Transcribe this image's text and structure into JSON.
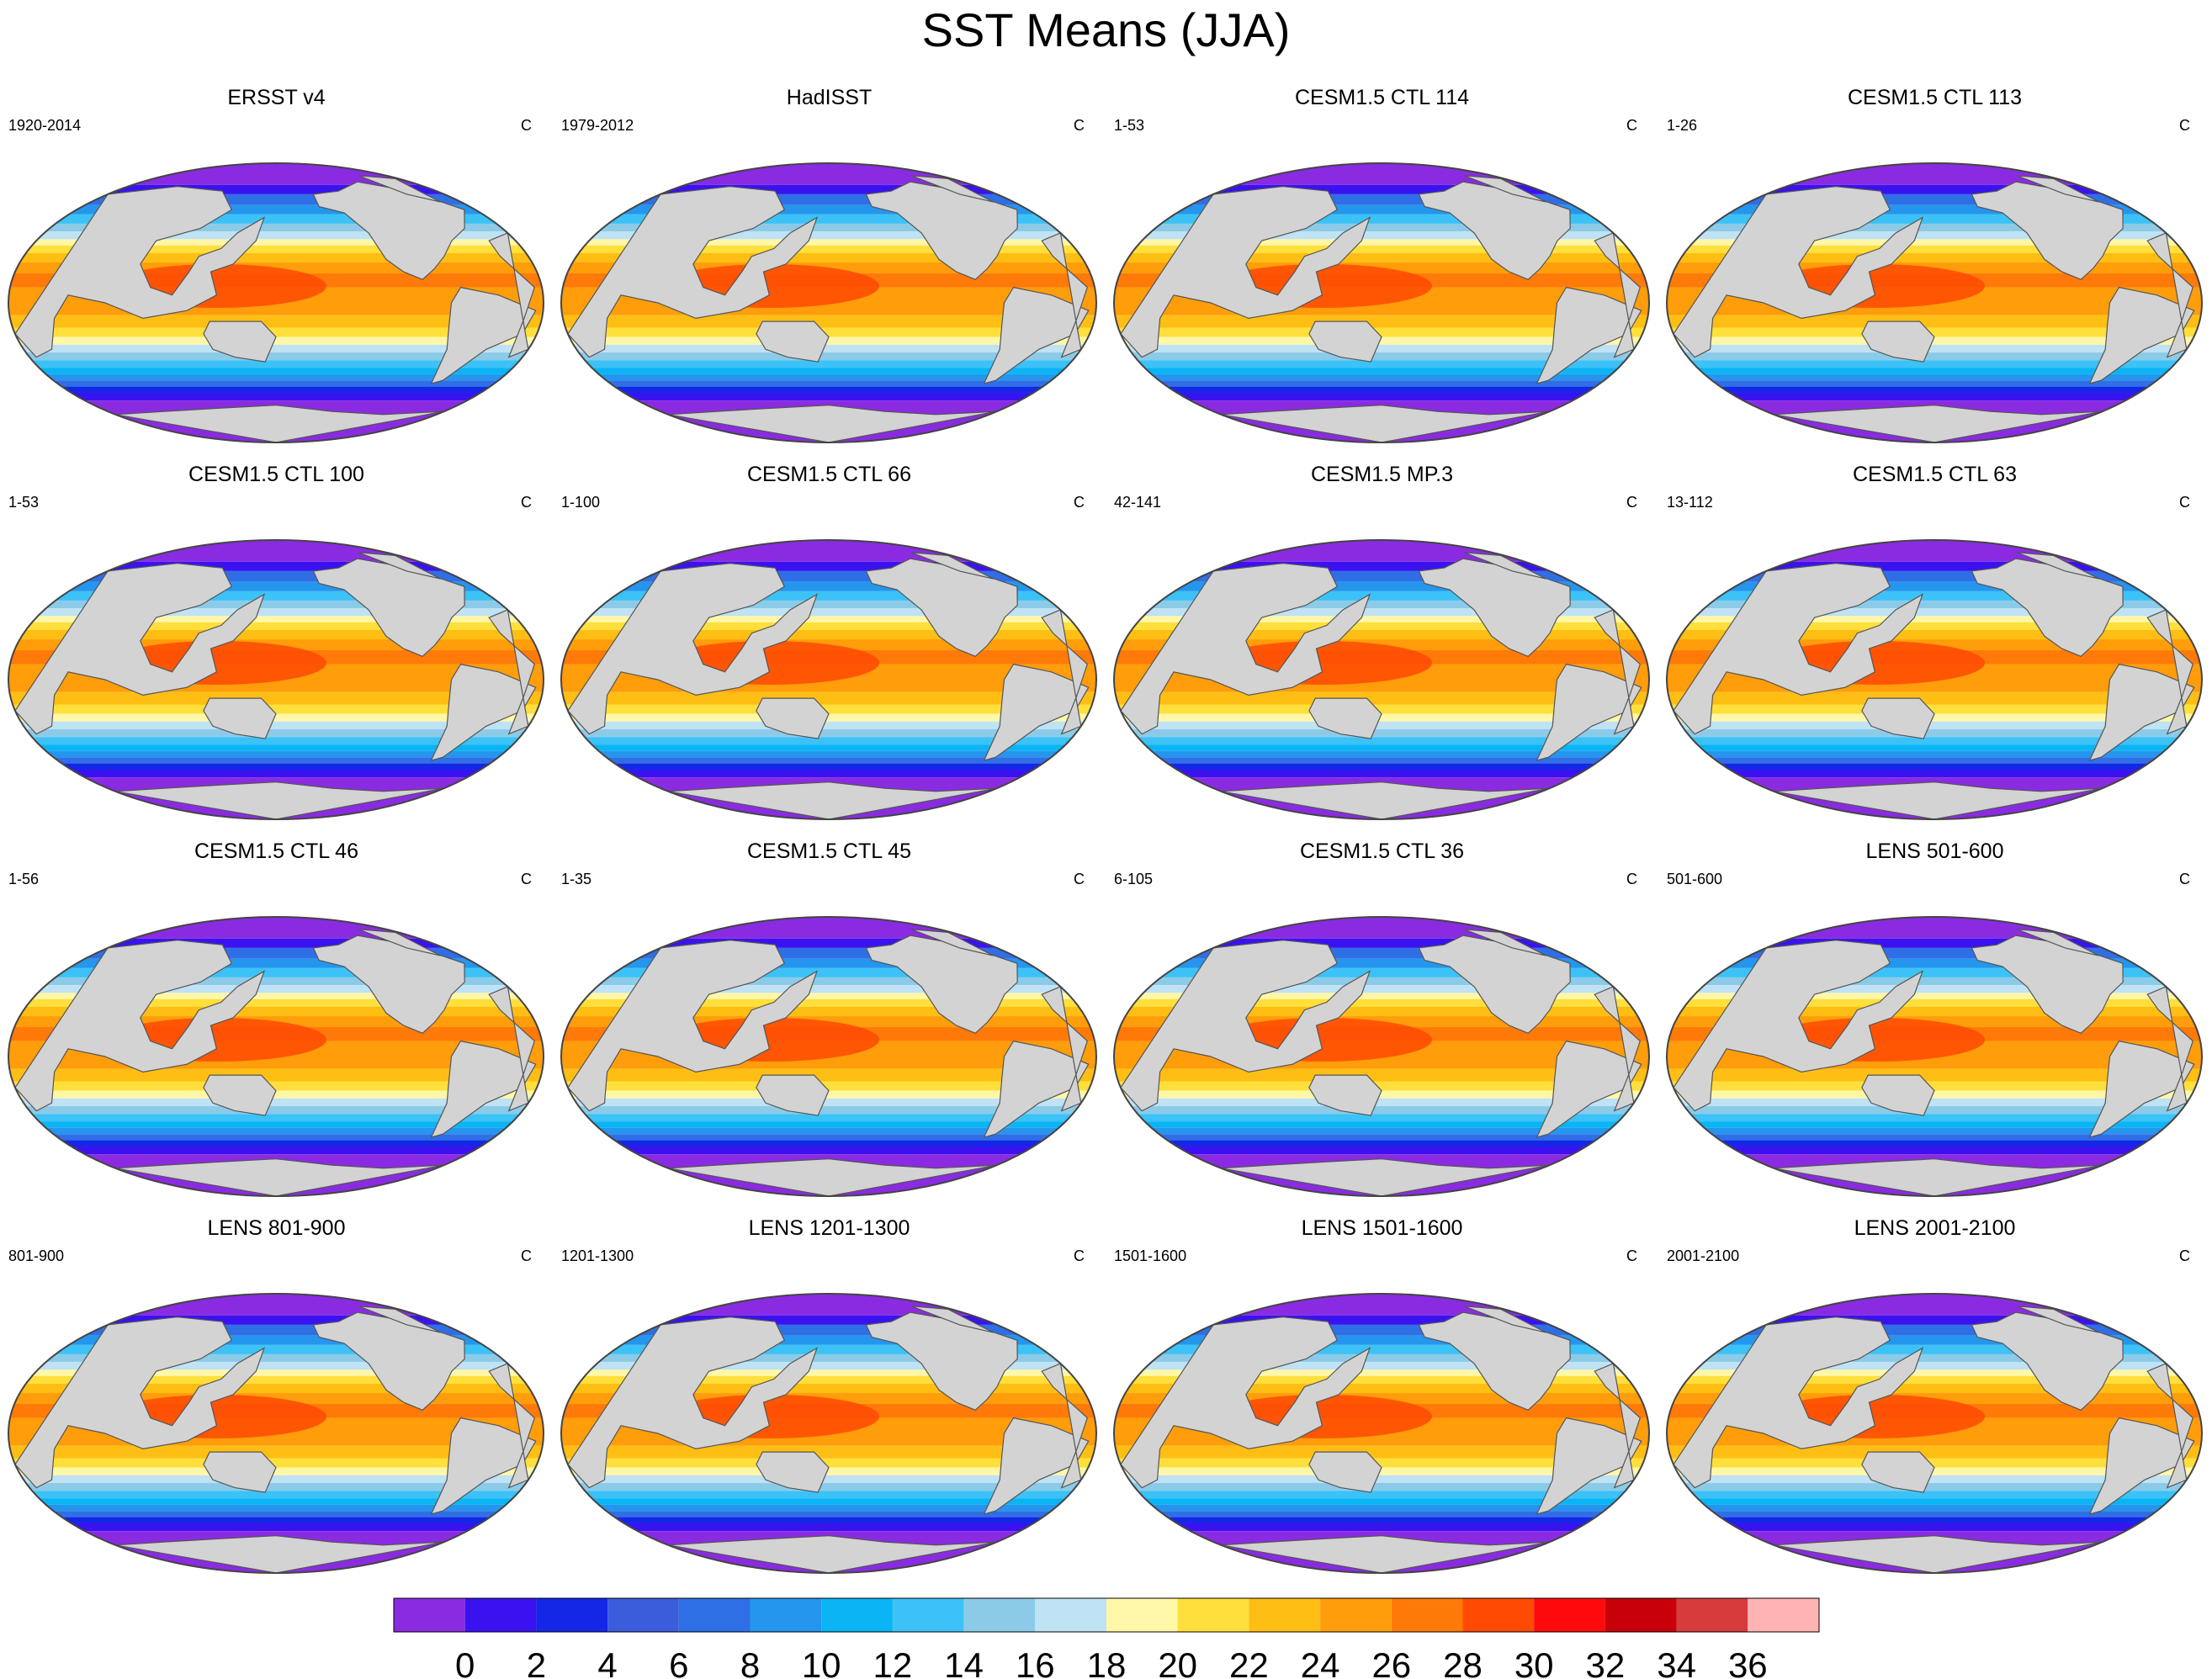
{
  "title": "SST Means (JJA)",
  "panels": [
    {
      "title": "ERSST v4",
      "left": "1920-2014",
      "right": "C"
    },
    {
      "title": "HadISST",
      "left": "1979-2012",
      "right": "C"
    },
    {
      "title": "CESM1.5 CTL 114",
      "left": "1-53",
      "right": "C"
    },
    {
      "title": "CESM1.5 CTL 113",
      "left": "1-26",
      "right": "C"
    },
    {
      "title": "CESM1.5 CTL 100",
      "left": "1-53",
      "right": "C"
    },
    {
      "title": "CESM1.5 CTL 66",
      "left": "1-100",
      "right": "C"
    },
    {
      "title": "CESM1.5 MP.3",
      "left": "42-141",
      "right": "C"
    },
    {
      "title": "CESM1.5 CTL 63",
      "left": "13-112",
      "right": "C"
    },
    {
      "title": "CESM1.5 CTL 46",
      "left": "1-56",
      "right": "C"
    },
    {
      "title": "CESM1.5 CTL 45",
      "left": "1-35",
      "right": "C"
    },
    {
      "title": "CESM1.5 CTL 36",
      "left": "6-105",
      "right": "C"
    },
    {
      "title": "LENS 501-600",
      "left": "501-600",
      "right": "C"
    },
    {
      "title": "LENS 801-900",
      "left": "801-900",
      "right": "C"
    },
    {
      "title": "LENS 1201-1300",
      "left": "1201-1300",
      "right": "C"
    },
    {
      "title": "LENS 1501-1600",
      "left": "1501-1600",
      "right": "C"
    },
    {
      "title": "LENS 2001-2100",
      "left": "2001-2100",
      "right": "C"
    }
  ],
  "colorbar": {
    "colors": [
      "#8a2be2",
      "#3a12f0",
      "#1426e6",
      "#3b5ddc",
      "#2f6fe6",
      "#2496ee",
      "#0ab4f5",
      "#3cc2f7",
      "#8ccbe8",
      "#bfe2f4",
      "#fff7a8",
      "#ffdf3c",
      "#ffbe14",
      "#ff9d0a",
      "#ff7a08",
      "#ff4a04",
      "#ff0a0a",
      "#c8000a",
      "#d63c3c",
      "#ffb4b4"
    ],
    "tick_labels": [
      "0",
      "2",
      "4",
      "6",
      "8",
      "10",
      "12",
      "14",
      "16",
      "18",
      "20",
      "22",
      "24",
      "26",
      "28",
      "30",
      "32",
      "34",
      "36"
    ],
    "unit": "C"
  },
  "bands": [
    {
      "lat": 90,
      "color": "#8a2be2"
    },
    {
      "lat": 76,
      "color": "#3a12f0"
    },
    {
      "lat": 70,
      "color": "#2f6fe6"
    },
    {
      "lat": 63,
      "color": "#2496ee"
    },
    {
      "lat": 57,
      "color": "#3cc2f7"
    },
    {
      "lat": 51,
      "color": "#8ccbe8"
    },
    {
      "lat": 46,
      "color": "#bfe2f4"
    },
    {
      "lat": 41,
      "color": "#fff7a8"
    },
    {
      "lat": 37,
      "color": "#ffdf3c"
    },
    {
      "lat": 32,
      "color": "#ffbe14"
    },
    {
      "lat": 26,
      "color": "#ff9d0a"
    },
    {
      "lat": 19,
      "color": "#ff7a08"
    },
    {
      "lat": 10,
      "color": "#ff9d0a"
    },
    {
      "lat": -8,
      "color": "#ffbe14"
    },
    {
      "lat": -16,
      "color": "#ffdf3c"
    },
    {
      "lat": -22,
      "color": "#fff7a8"
    },
    {
      "lat": -27,
      "color": "#bfe2f4"
    },
    {
      "lat": -32,
      "color": "#8ccbe8"
    },
    {
      "lat": -37,
      "color": "#3cc2f7"
    },
    {
      "lat": -42,
      "color": "#0ab4f5"
    },
    {
      "lat": -46,
      "color": "#2496ee"
    },
    {
      "lat": -50,
      "color": "#2f6fe6"
    },
    {
      "lat": -54,
      "color": "#1426e6"
    },
    {
      "lat": -58,
      "color": "#3a12f0"
    },
    {
      "lat": -63,
      "color": "#8a2be2"
    }
  ],
  "land_color": "#d3d3d3"
}
